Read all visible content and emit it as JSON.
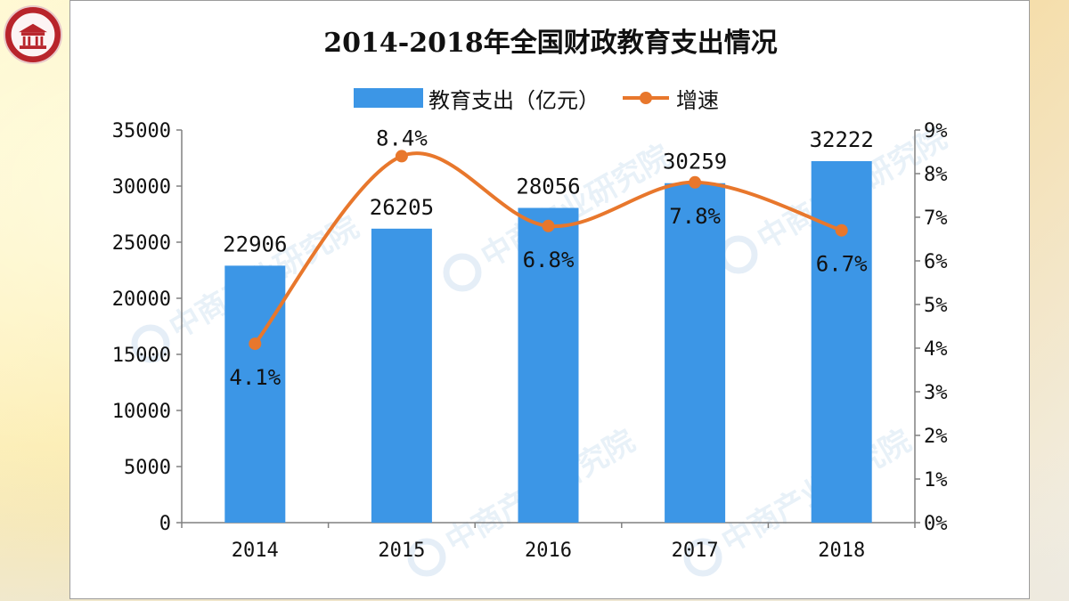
{
  "colors": {
    "bar": "#3c96e6",
    "line": "#e8772c",
    "axis": "#808080",
    "text": "#111111"
  },
  "watermark": "中商产业研究院",
  "logo": {
    "icon": "university-seal-icon"
  },
  "chart_data": {
    "type": "bar+line",
    "title": "2014-2018年全国财政教育支出情况",
    "categories": [
      "2014",
      "2015",
      "2016",
      "2017",
      "2018"
    ],
    "series": [
      {
        "name": "教育支出（亿元）",
        "type": "bar",
        "axis": "left",
        "values": [
          22906,
          26205,
          28056,
          30259,
          32222
        ],
        "labels": [
          "22906",
          "26205",
          "28056",
          "30259",
          "32222"
        ]
      },
      {
        "name": "增速",
        "type": "line",
        "axis": "right",
        "values": [
          4.1,
          8.4,
          6.8,
          7.8,
          6.7
        ],
        "labels": [
          "4.1%",
          "8.4%",
          "6.8%",
          "7.8%",
          "6.7%"
        ]
      }
    ],
    "left_axis": {
      "min": 0,
      "max": 35000,
      "ticks": [
        "0",
        "5000",
        "10000",
        "15000",
        "20000",
        "25000",
        "30000",
        "35000"
      ]
    },
    "right_axis": {
      "min": 0,
      "max": 9,
      "ticks": [
        "0%",
        "1%",
        "2%",
        "3%",
        "4%",
        "5%",
        "6%",
        "7%",
        "8%",
        "9%"
      ]
    },
    "legend_position": "top-center",
    "grid": false
  }
}
